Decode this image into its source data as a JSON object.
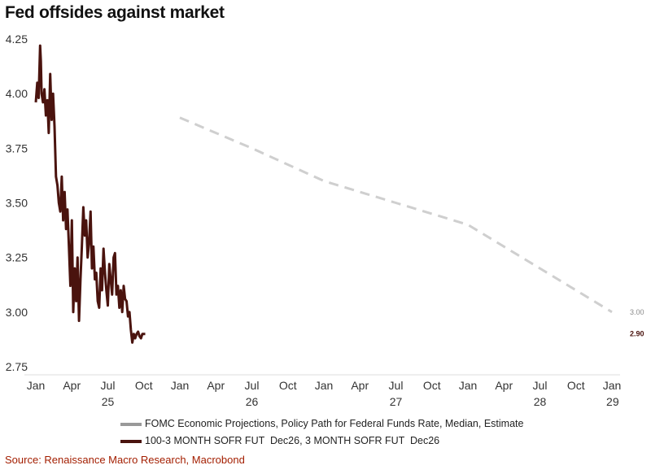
{
  "title": "Fed offsides against market",
  "source": "Source: Renaissance Macro Research, Macrobond",
  "colors": {
    "market": "#4a130e",
    "fomc": "#cfcfcf",
    "fomc_legend": "#999999",
    "source_text": "#a31e00"
  },
  "chart_data": {
    "type": "line",
    "title": "Fed offsides against market",
    "xlabel": "",
    "ylabel": "",
    "ylim": [
      2.72,
      4.28
    ],
    "y_ticks": [
      "4.25",
      "4.00",
      "3.75",
      "3.50",
      "3.25",
      "3.00",
      "2.75"
    ],
    "y_tick_values": [
      4.25,
      4.0,
      3.75,
      3.5,
      3.25,
      3.0,
      2.75
    ],
    "x_range": [
      2025.0,
      2029.05
    ],
    "x_ticks": [
      {
        "label": "Jan",
        "t": 2025.0
      },
      {
        "label": "Apr",
        "t": 2025.25
      },
      {
        "label": "Jul",
        "t": 2025.5
      },
      {
        "label": "Oct",
        "t": 2025.75
      },
      {
        "label": "Jan",
        "t": 2026.0
      },
      {
        "label": "Apr",
        "t": 2026.25
      },
      {
        "label": "Jul",
        "t": 2026.5
      },
      {
        "label": "Oct",
        "t": 2026.75
      },
      {
        "label": "Jan",
        "t": 2027.0
      },
      {
        "label": "Apr",
        "t": 2027.25
      },
      {
        "label": "Jul",
        "t": 2027.5
      },
      {
        "label": "Oct",
        "t": 2027.75
      },
      {
        "label": "Jan",
        "t": 2028.0
      },
      {
        "label": "Apr",
        "t": 2028.25
      },
      {
        "label": "Jul",
        "t": 2028.5
      },
      {
        "label": "Oct",
        "t": 2028.75
      },
      {
        "label": "Jan",
        "t": 2029.0
      }
    ],
    "year_labels": [
      {
        "label": "25",
        "t": 2025.5
      },
      {
        "label": "26",
        "t": 2026.5
      },
      {
        "label": "27",
        "t": 2027.5
      },
      {
        "label": "28",
        "t": 2028.5
      },
      {
        "label": "29",
        "t": 2029.05
      }
    ],
    "series": [
      {
        "name": "FOMC Economic Projections, Policy Path for Federal Funds Rate, Median, Estimate",
        "style": "dashed",
        "x": [
          2026.0,
          2026.5,
          2027.0,
          2027.5,
          2028.0,
          2028.5,
          2029.0
        ],
        "values": [
          3.89,
          3.75,
          3.6,
          3.5,
          3.4,
          3.2,
          3.0
        ],
        "end_label": "3.00"
      },
      {
        "name": "100-3 MONTH SOFR FUT  Dec26, 3 MONTH SOFR FUT  Dec26",
        "style": "solid",
        "x": [
          2025.0,
          2025.01,
          2025.02,
          2025.03,
          2025.035,
          2025.04,
          2025.05,
          2025.06,
          2025.07,
          2025.08,
          2025.09,
          2025.1,
          2025.11,
          2025.12,
          2025.13,
          2025.14,
          2025.15,
          2025.16,
          2025.17,
          2025.18,
          2025.19,
          2025.2,
          2025.21,
          2025.22,
          2025.23,
          2025.24,
          2025.25,
          2025.26,
          2025.27,
          2025.28,
          2025.29,
          2025.3,
          2025.31,
          2025.32,
          2025.33,
          2025.34,
          2025.35,
          2025.36,
          2025.37,
          2025.38,
          2025.39,
          2025.4,
          2025.41,
          2025.42,
          2025.43,
          2025.44,
          2025.45,
          2025.46,
          2025.47,
          2025.48,
          2025.49,
          2025.5,
          2025.51,
          2025.52,
          2025.53,
          2025.54,
          2025.55,
          2025.56,
          2025.57,
          2025.58,
          2025.59,
          2025.6,
          2025.61,
          2025.62,
          2025.63,
          2025.64,
          2025.65,
          2025.66,
          2025.67,
          2025.68,
          2025.69,
          2025.7,
          2025.71,
          2025.72,
          2025.73,
          2025.74,
          2025.745,
          2025.75,
          2025.76
        ],
        "values": [
          3.96,
          4.05,
          3.98,
          4.22,
          4.15,
          4.0,
          3.96,
          4.02,
          3.9,
          3.97,
          3.82,
          4.09,
          3.88,
          4.0,
          3.85,
          3.62,
          3.58,
          3.5,
          3.46,
          3.62,
          3.42,
          3.55,
          3.38,
          3.47,
          3.3,
          3.12,
          3.42,
          3.0,
          3.2,
          3.05,
          3.25,
          2.96,
          3.15,
          3.3,
          3.48,
          3.35,
          3.42,
          3.25,
          3.32,
          3.46,
          3.2,
          3.3,
          3.15,
          3.18,
          3.05,
          3.02,
          3.2,
          3.1,
          3.29,
          3.18,
          3.1,
          3.03,
          3.22,
          3.15,
          3.08,
          3.25,
          3.27,
          3.08,
          3.12,
          3.02,
          3.1,
          3.0,
          3.12,
          3.06,
          3.05,
          2.98,
          3.0,
          2.92,
          2.86,
          2.9,
          2.88,
          2.9,
          2.91,
          2.89,
          2.88,
          2.9,
          2.9,
          2.9,
          2.9
        ],
        "end_label": "2.90"
      }
    ]
  }
}
